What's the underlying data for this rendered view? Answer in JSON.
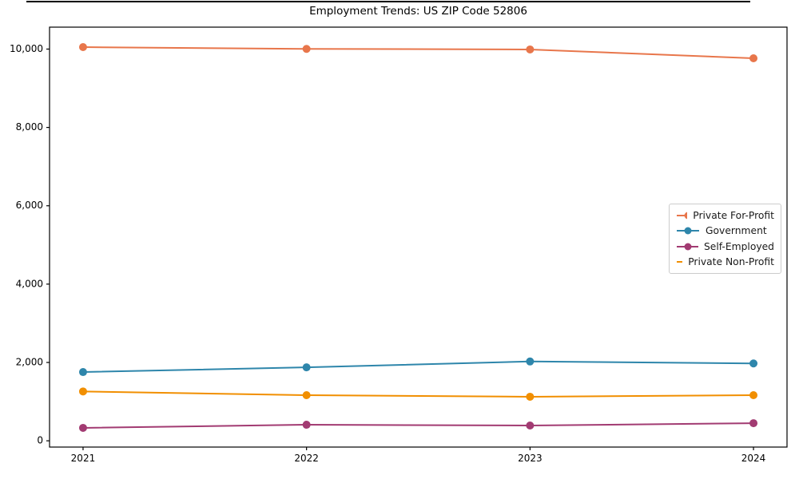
{
  "figure": {
    "background": "#ffffff"
  },
  "chart_data": {
    "type": "line",
    "title": "Employment Trends: US ZIP Code 52806",
    "xlabel": "",
    "ylabel": "",
    "x": [
      "2021",
      "2022",
      "2023",
      "2024"
    ],
    "series": [
      {
        "name": "Private For-Profit",
        "color": "#E8764B",
        "values": [
          10050,
          10005,
          9990,
          9765
        ]
      },
      {
        "name": "Government",
        "color": "#2E86AB",
        "values": [
          1755,
          1875,
          2025,
          1975
        ]
      },
      {
        "name": "Self-Employed",
        "color": "#A23B72",
        "values": [
          330,
          410,
          390,
          450
        ]
      },
      {
        "name": "Private Non-Profit",
        "color": "#F18F01",
        "values": [
          1260,
          1165,
          1125,
          1165
        ]
      }
    ],
    "yticks": [
      {
        "value": 0,
        "label": "0"
      },
      {
        "value": 2000,
        "label": "2,000"
      },
      {
        "value": 4000,
        "label": "4,000"
      },
      {
        "value": 6000,
        "label": "6,000"
      },
      {
        "value": 8000,
        "label": "8,000"
      },
      {
        "value": 10000,
        "label": "10,000"
      }
    ],
    "ylim": [
      -160,
      10560
    ],
    "x_edge_pad": 0.15,
    "grid": false,
    "legend": {
      "position": "center-right",
      "border_color": "#cccccc",
      "background": "#ffffff"
    }
  },
  "colors": {
    "axis": "#000000",
    "tick_text": "#000000"
  }
}
